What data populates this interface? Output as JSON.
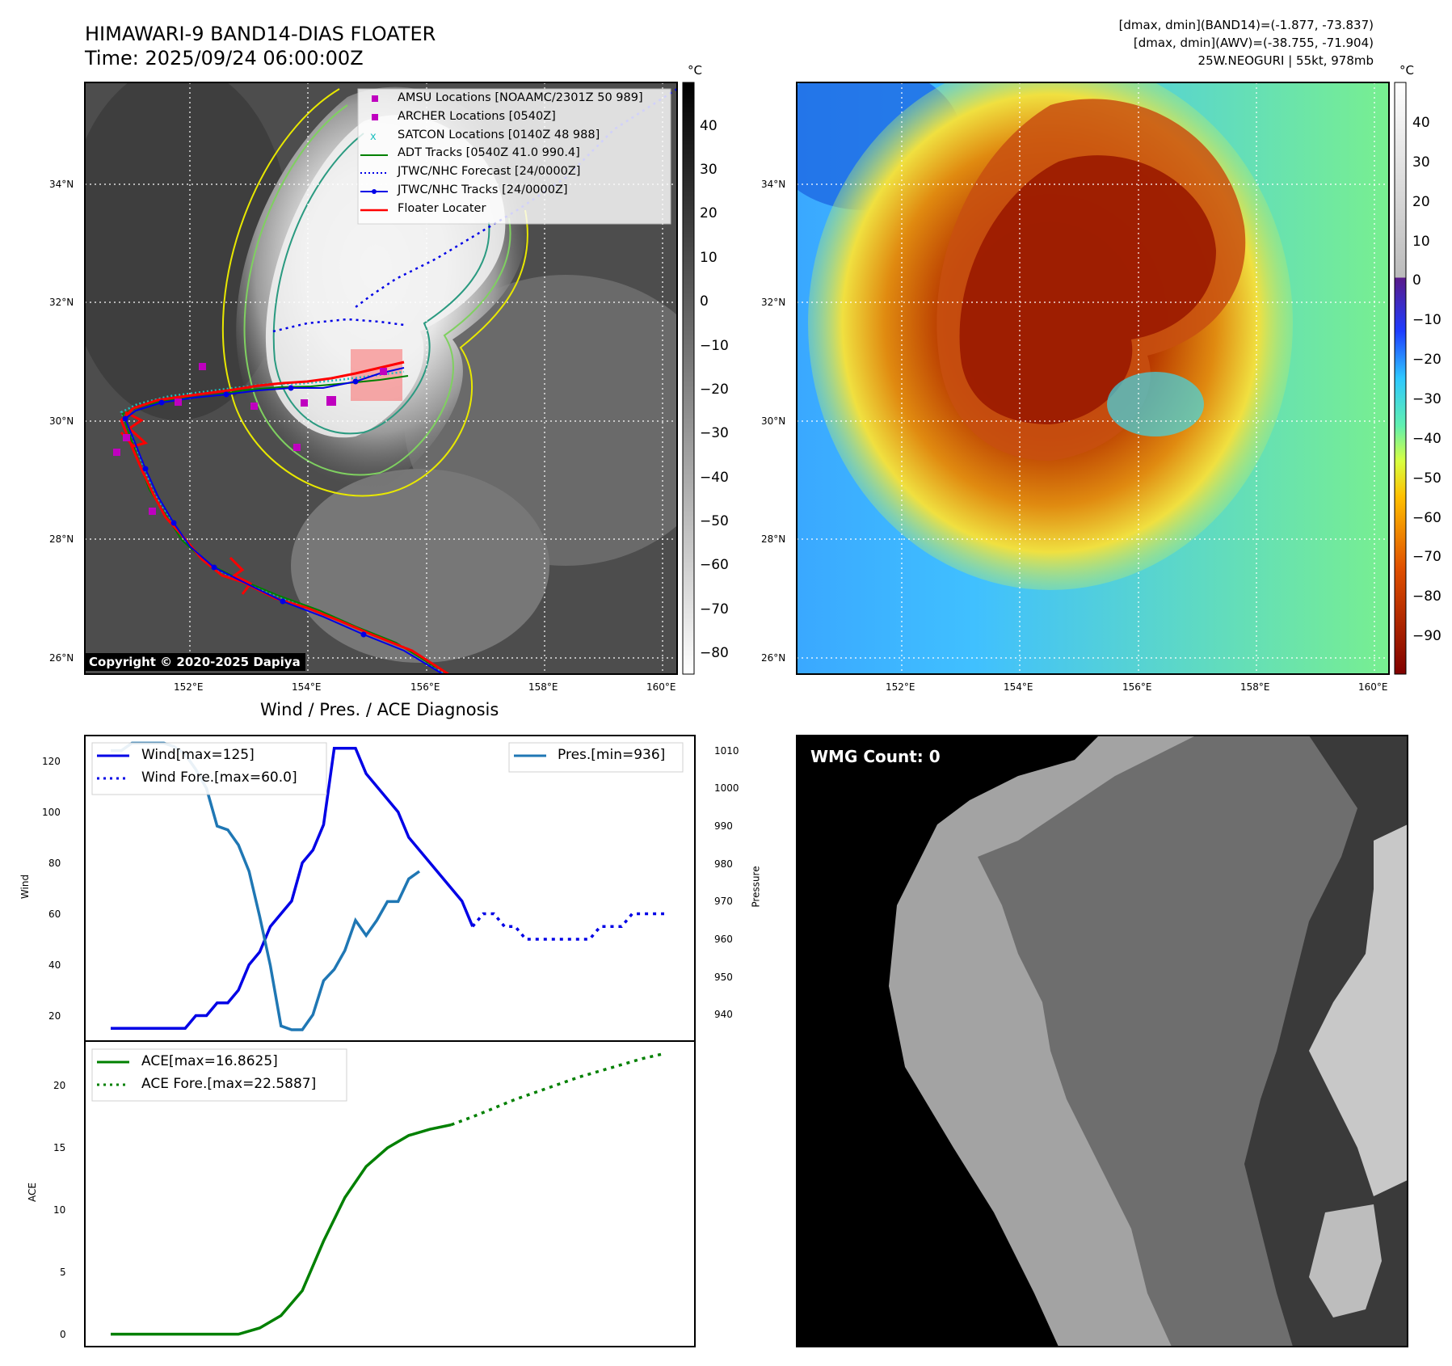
{
  "header": {
    "title": "HIMAWARI-9 BAND14-DIAS FLOATER",
    "time": "Time: 2025/09/24 06:00:00Z",
    "stats_band14": "[dmax, dmin](BAND14)=(-1.877, -73.837)",
    "stats_awv": "[dmax, dmin](AWV)=(-38.755, -71.904)",
    "storm_info": "25W.NEOGURI | 55kt, 978mb"
  },
  "colors": {
    "amsu": "#bf00bf",
    "archer": "#bf00bf",
    "satcon": "#1fbfbf",
    "adt": "#008000",
    "forecast": "#0000e6",
    "tracks": "#0000e6",
    "floater": "#ff0000",
    "wind": "#0000e6",
    "pres": "#1f77b4",
    "ace": "#008000"
  },
  "map_left": {
    "copyright": "Copyright © 2020-2025 Dapiya",
    "colorbar_unit": "°C",
    "colorbar_ticks": [
      "40",
      "30",
      "20",
      "10",
      "0",
      "−10",
      "−20",
      "−30",
      "−40",
      "−50",
      "−60",
      "−70",
      "−80"
    ],
    "lat_labels": [
      "34°N",
      "32°N",
      "30°N",
      "28°N",
      "26°N"
    ],
    "lon_labels": [
      "152°E",
      "154°E",
      "156°E",
      "158°E",
      "160°E"
    ],
    "legend": [
      {
        "label": "AMSU Locations [NOAAMC/2301Z 50 989]",
        "icon": "square-marker"
      },
      {
        "label": "ARCHER Locations [0540Z]",
        "icon": "square-marker"
      },
      {
        "label": "SATCON Locations [0140Z 48 988]",
        "icon": "x-marker"
      },
      {
        "label": "ADT Tracks [0540Z 41.0 990.4]",
        "icon": "solid-line"
      },
      {
        "label": "JTWC/NHC Forecast [24/0000Z]",
        "icon": "dotted-line"
      },
      {
        "label": "JTWC/NHC Tracks [24/0000Z]",
        "icon": "dot-line"
      },
      {
        "label": "Floater Locater",
        "icon": "solid-line"
      }
    ]
  },
  "map_right": {
    "colorbar_unit": "°C",
    "colorbar_ticks": [
      "40",
      "30",
      "20",
      "10",
      "0",
      "−10",
      "−20",
      "−30",
      "−40",
      "−50",
      "−60",
      "−70",
      "−80",
      "−90"
    ],
    "lat_labels": [
      "34°N",
      "32°N",
      "30°N",
      "28°N",
      "26°N"
    ],
    "lon_labels": [
      "152°E",
      "154°E",
      "156°E",
      "158°E",
      "160°E"
    ]
  },
  "wmg": {
    "label": "WMG Count: 0"
  },
  "chart_data": [
    {
      "type": "line",
      "title": "Wind / Pres. / ACE Diagnosis",
      "ylabel": "Wind",
      "y2label": "Pressure",
      "ylim": [
        10,
        130
      ],
      "y2lim": [
        933,
        1014
      ],
      "yticks": [
        20,
        40,
        60,
        80,
        100,
        120
      ],
      "y2ticks": [
        940,
        950,
        960,
        970,
        980,
        990,
        1000,
        1010
      ],
      "series": [
        {
          "name": "Wind[max=125]",
          "axis": "left",
          "style": "solid",
          "x": [
            0,
            1,
            2,
            3,
            4,
            5,
            6,
            7,
            8,
            9,
            10,
            11,
            12,
            13,
            14,
            15,
            16,
            17,
            18,
            19,
            20,
            21,
            22,
            23,
            24,
            25,
            26,
            27,
            28,
            29,
            30,
            31,
            32,
            33,
            34,
            35,
            36
          ],
          "values": [
            15,
            15,
            15,
            15,
            15,
            15,
            15,
            15,
            20,
            20,
            25,
            25,
            30,
            40,
            45,
            55,
            60,
            65,
            80,
            85,
            95,
            125,
            125,
            125,
            115,
            110,
            105,
            100,
            90,
            85,
            80,
            75,
            70,
            65,
            55,
            null,
            null
          ]
        },
        {
          "name": "Wind Fore.[max=60.0]",
          "axis": "left",
          "style": "dotted",
          "x": [
            34,
            35,
            36,
            37,
            38,
            39,
            40,
            41,
            42,
            43,
            44,
            45,
            46,
            47,
            48,
            49,
            50,
            51,
            52
          ],
          "values": [
            55,
            60,
            60,
            55,
            55,
            50,
            50,
            50,
            50,
            50,
            50,
            50,
            55,
            55,
            55,
            60,
            60,
            60,
            60
          ]
        },
        {
          "name": "Pres.[min=936]",
          "axis": "right",
          "style": "solid",
          "x": [
            0,
            1,
            2,
            3,
            4,
            5,
            6,
            7,
            8,
            9,
            10,
            11,
            12,
            13,
            14,
            15,
            16,
            17,
            18,
            19,
            20,
            21,
            22,
            23,
            24,
            25,
            26,
            27,
            28,
            29,
            30,
            31,
            32,
            33,
            34,
            35
          ],
          "values": [
            1010,
            1010,
            1012,
            1012,
            1012,
            1012,
            1011,
            1009,
            1005,
            1000,
            990,
            989,
            985,
            978,
            966,
            953,
            937,
            936,
            936,
            940,
            949,
            952,
            957,
            965,
            961,
            965,
            970,
            970,
            976,
            978,
            null,
            null,
            null,
            null,
            null,
            null
          ]
        }
      ],
      "legend_left": [
        "Wind[max=125]",
        "Wind Fore.[max=60.0]"
      ],
      "legend_right": [
        "Pres.[min=936]"
      ]
    },
    {
      "type": "line",
      "ylabel": "ACE",
      "ylim": [
        -1,
        23.6
      ],
      "yticks": [
        0,
        5,
        10,
        15,
        20
      ],
      "series": [
        {
          "name": "ACE[max=16.8625]",
          "style": "solid",
          "x": [
            0,
            2,
            4,
            6,
            8,
            10,
            12,
            14,
            16,
            18,
            20,
            22,
            24,
            26,
            28,
            30,
            32,
            34,
            36
          ],
          "values": [
            0,
            0,
            0,
            0,
            0,
            0,
            0,
            0.5,
            1.5,
            3.5,
            7.5,
            11,
            13.5,
            15,
            16,
            16.5,
            16.8625,
            null,
            null
          ]
        },
        {
          "name": "ACE Fore.[max=22.5887]",
          "style": "dotted",
          "x": [
            32,
            34,
            36,
            38,
            40,
            42,
            44,
            46,
            48,
            50,
            52
          ],
          "values": [
            16.8625,
            17.5,
            18.2,
            18.9,
            19.5,
            20.1,
            20.7,
            21.2,
            21.7,
            22.2,
            22.5887
          ]
        }
      ],
      "legend": [
        "ACE[max=16.8625]",
        "ACE Fore.[max=22.5887]"
      ]
    }
  ]
}
